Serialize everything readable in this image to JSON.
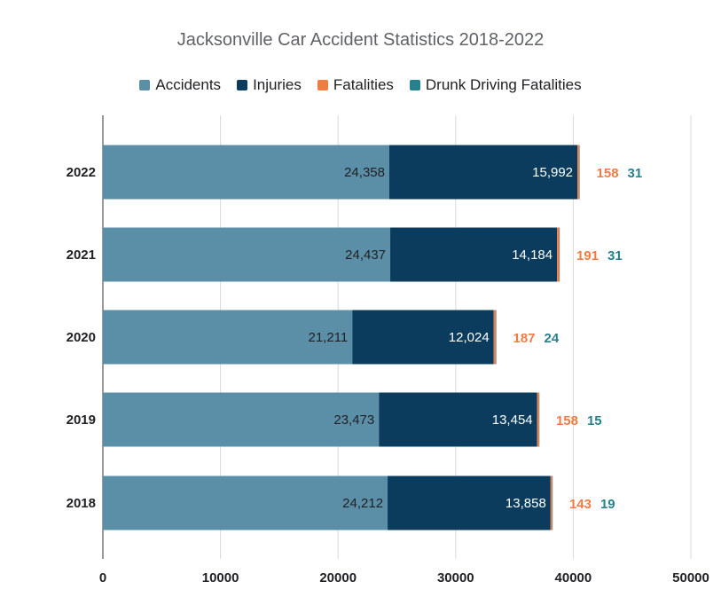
{
  "chart_data": {
    "type": "bar",
    "orientation": "horizontal",
    "stacked": true,
    "title": "Jacksonville Car Accident Statistics 2018-2022",
    "categories": [
      "2022",
      "2021",
      "2020",
      "2019",
      "2018"
    ],
    "series": [
      {
        "name": "Accidents",
        "color": "#5b8fa8",
        "values": [
          24358,
          24437,
          21211,
          23473,
          24212
        ],
        "labels": [
          "24,358",
          "24,437",
          "21,211",
          "23,473",
          "24,212"
        ]
      },
      {
        "name": "Injuries",
        "color": "#0b3c5d",
        "values": [
          15992,
          14184,
          12024,
          13454,
          13858
        ],
        "labels": [
          "15,992",
          "14,184",
          "12,024",
          "13,454",
          "13,858"
        ]
      },
      {
        "name": "Fatalities",
        "color": "#f07c45",
        "values": [
          158,
          191,
          187,
          158,
          143
        ],
        "labels": [
          "158",
          "191",
          "187",
          "158",
          "143"
        ]
      },
      {
        "name": "Drunk Driving Fatalities",
        "color": "#26808e",
        "values": [
          31,
          31,
          24,
          15,
          19
        ],
        "labels": [
          "31",
          "31",
          "24",
          "15",
          "19"
        ]
      }
    ],
    "xlim": [
      0,
      50000
    ],
    "xticks": [
      "0",
      "10000",
      "20000",
      "30000",
      "40000",
      "50000"
    ],
    "grid": true,
    "legend_position": "top"
  }
}
